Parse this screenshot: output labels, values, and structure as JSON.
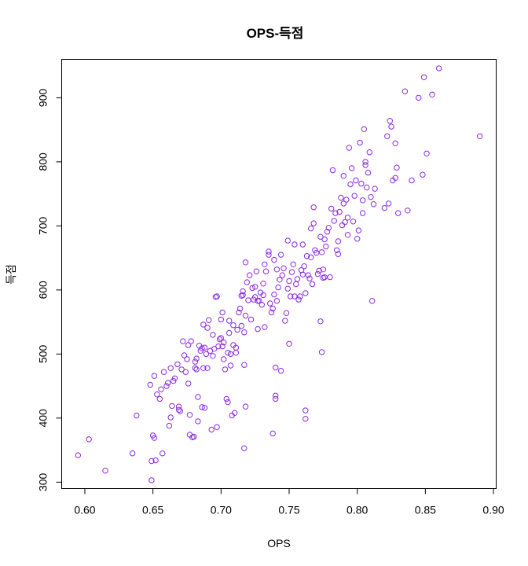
{
  "chart_data": {
    "type": "scatter",
    "title": "OPS-득점",
    "xlabel": "OPS",
    "ylabel": "득점",
    "xlim": [
      0.583,
      0.902
    ],
    "ylim": [
      290,
      960
    ],
    "x_ticks": [
      "0.60",
      "0.65",
      "0.70",
      "0.75",
      "0.80",
      "0.85",
      "0.90"
    ],
    "x_tick_values": [
      0.6,
      0.65,
      0.7,
      0.75,
      0.8,
      0.85,
      0.9
    ],
    "y_ticks": [
      "300",
      "400",
      "500",
      "600",
      "700",
      "800",
      "900"
    ],
    "y_tick_values": [
      300,
      400,
      500,
      600,
      700,
      800,
      900
    ],
    "grid": false,
    "marker": "open-circle",
    "point_color": "#8A2BE2",
    "points": [
      [
        0.595,
        342
      ],
      [
        0.603,
        367
      ],
      [
        0.615,
        318
      ],
      [
        0.635,
        345
      ],
      [
        0.638,
        404
      ],
      [
        0.648,
        452
      ],
      [
        0.649,
        333
      ],
      [
        0.649,
        303
      ],
      [
        0.65,
        373
      ],
      [
        0.651,
        369
      ],
      [
        0.651,
        466
      ],
      [
        0.652,
        334
      ],
      [
        0.653,
        437
      ],
      [
        0.655,
        430
      ],
      [
        0.656,
        445
      ],
      [
        0.657,
        345
      ],
      [
        0.658,
        472
      ],
      [
        0.66,
        450
      ],
      [
        0.661,
        455
      ],
      [
        0.662,
        388
      ],
      [
        0.663,
        478
      ],
      [
        0.663,
        401
      ],
      [
        0.664,
        419
      ],
      [
        0.665,
        458
      ],
      [
        0.666,
        462
      ],
      [
        0.668,
        484
      ],
      [
        0.669,
        413
      ],
      [
        0.669,
        418
      ],
      [
        0.67,
        411
      ],
      [
        0.671,
        476
      ],
      [
        0.672,
        520
      ],
      [
        0.673,
        498
      ],
      [
        0.674,
        472
      ],
      [
        0.675,
        492
      ],
      [
        0.676,
        454
      ],
      [
        0.676,
        514
      ],
      [
        0.677,
        405
      ],
      [
        0.677,
        374
      ],
      [
        0.678,
        520
      ],
      [
        0.679,
        370
      ],
      [
        0.68,
        371
      ],
      [
        0.681,
        478
      ],
      [
        0.681,
        488
      ],
      [
        0.682,
        493
      ],
      [
        0.682,
        476
      ],
      [
        0.683,
        433
      ],
      [
        0.683,
        395
      ],
      [
        0.684,
        513
      ],
      [
        0.685,
        505
      ],
      [
        0.686,
        509
      ],
      [
        0.686,
        417
      ],
      [
        0.687,
        546
      ],
      [
        0.687,
        478
      ],
      [
        0.688,
        416
      ],
      [
        0.688,
        510
      ],
      [
        0.689,
        500
      ],
      [
        0.69,
        541
      ],
      [
        0.69,
        478
      ],
      [
        0.691,
        553
      ],
      [
        0.692,
        505
      ],
      [
        0.693,
        382
      ],
      [
        0.694,
        497
      ],
      [
        0.694,
        530
      ],
      [
        0.695,
        508
      ],
      [
        0.696,
        589
      ],
      [
        0.697,
        590
      ],
      [
        0.697,
        386
      ],
      [
        0.698,
        512
      ],
      [
        0.699,
        523
      ],
      [
        0.7,
        554
      ],
      [
        0.7,
        525
      ],
      [
        0.701,
        565
      ],
      [
        0.701,
        512
      ],
      [
        0.702,
        518
      ],
      [
        0.702,
        492
      ],
      [
        0.703,
        476
      ],
      [
        0.704,
        430
      ],
      [
        0.705,
        502
      ],
      [
        0.705,
        425
      ],
      [
        0.706,
        533
      ],
      [
        0.706,
        552
      ],
      [
        0.707,
        500
      ],
      [
        0.707,
        482
      ],
      [
        0.708,
        404
      ],
      [
        0.709,
        514
      ],
      [
        0.709,
        545
      ],
      [
        0.71,
        408
      ],
      [
        0.711,
        502
      ],
      [
        0.711,
        510
      ],
      [
        0.712,
        538
      ],
      [
        0.713,
        565
      ],
      [
        0.714,
        571
      ],
      [
        0.715,
        544
      ],
      [
        0.715,
        591
      ],
      [
        0.716,
        592
      ],
      [
        0.716,
        598
      ],
      [
        0.717,
        534
      ],
      [
        0.717,
        483
      ],
      [
        0.717,
        353
      ],
      [
        0.718,
        560
      ],
      [
        0.718,
        418
      ],
      [
        0.718,
        643
      ],
      [
        0.719,
        612
      ],
      [
        0.72,
        584
      ],
      [
        0.721,
        623
      ],
      [
        0.722,
        554
      ],
      [
        0.723,
        603
      ],
      [
        0.724,
        585
      ],
      [
        0.725,
        605
      ],
      [
        0.725,
        589
      ],
      [
        0.726,
        629
      ],
      [
        0.727,
        583
      ],
      [
        0.727,
        539
      ],
      [
        0.728,
        583
      ],
      [
        0.729,
        596
      ],
      [
        0.73,
        577
      ],
      [
        0.731,
        592
      ],
      [
        0.731,
        610
      ],
      [
        0.732,
        640
      ],
      [
        0.732,
        542
      ],
      [
        0.733,
        629
      ],
      [
        0.735,
        660
      ],
      [
        0.735,
        655
      ],
      [
        0.736,
        579
      ],
      [
        0.737,
        565
      ],
      [
        0.738,
        376
      ],
      [
        0.738,
        571
      ],
      [
        0.739,
        593
      ],
      [
        0.739,
        647
      ],
      [
        0.74,
        435
      ],
      [
        0.74,
        430
      ],
      [
        0.74,
        479
      ],
      [
        0.741,
        583
      ],
      [
        0.741,
        632
      ],
      [
        0.742,
        604
      ],
      [
        0.743,
        616
      ],
      [
        0.744,
        474
      ],
      [
        0.744,
        655
      ],
      [
        0.745,
        623
      ],
      [
        0.746,
        634
      ],
      [
        0.747,
        552
      ],
      [
        0.748,
        564
      ],
      [
        0.749,
        677
      ],
      [
        0.749,
        602
      ],
      [
        0.75,
        614
      ],
      [
        0.75,
        516
      ],
      [
        0.751,
        590
      ],
      [
        0.752,
        628
      ],
      [
        0.753,
        640
      ],
      [
        0.754,
        671
      ],
      [
        0.754,
        590
      ],
      [
        0.755,
        609
      ],
      [
        0.756,
        617
      ],
      [
        0.757,
        585
      ],
      [
        0.758,
        590
      ],
      [
        0.759,
        631
      ],
      [
        0.76,
        624
      ],
      [
        0.76,
        671
      ],
      [
        0.761,
        637
      ],
      [
        0.762,
        595
      ],
      [
        0.762,
        412
      ],
      [
        0.762,
        399
      ],
      [
        0.763,
        653
      ],
      [
        0.764,
        623
      ],
      [
        0.765,
        618
      ],
      [
        0.766,
        651
      ],
      [
        0.766,
        696
      ],
      [
        0.767,
        609
      ],
      [
        0.768,
        729
      ],
      [
        0.768,
        704
      ],
      [
        0.769,
        662
      ],
      [
        0.77,
        658
      ],
      [
        0.771,
        625
      ],
      [
        0.772,
        630
      ],
      [
        0.773,
        683
      ],
      [
        0.773,
        551
      ],
      [
        0.774,
        659
      ],
      [
        0.774,
        503
      ],
      [
        0.775,
        619
      ],
      [
        0.775,
        632
      ],
      [
        0.776,
        620
      ],
      [
        0.776,
        679
      ],
      [
        0.777,
        668
      ],
      [
        0.778,
        691
      ],
      [
        0.779,
        697
      ],
      [
        0.78,
        620
      ],
      [
        0.781,
        727
      ],
      [
        0.782,
        787
      ],
      [
        0.783,
        708
      ],
      [
        0.784,
        720
      ],
      [
        0.785,
        662
      ],
      [
        0.786,
        676
      ],
      [
        0.786,
        656
      ],
      [
        0.787,
        722
      ],
      [
        0.788,
        744
      ],
      [
        0.789,
        701
      ],
      [
        0.79,
        778
      ],
      [
        0.79,
        735
      ],
      [
        0.791,
        706
      ],
      [
        0.792,
        741
      ],
      [
        0.793,
        713
      ],
      [
        0.793,
        686
      ],
      [
        0.794,
        822
      ],
      [
        0.795,
        765
      ],
      [
        0.796,
        790
      ],
      [
        0.797,
        707
      ],
      [
        0.798,
        747
      ],
      [
        0.799,
        771
      ],
      [
        0.8,
        680
      ],
      [
        0.801,
        693
      ],
      [
        0.802,
        830
      ],
      [
        0.803,
        766
      ],
      [
        0.804,
        740
      ],
      [
        0.804,
        720
      ],
      [
        0.805,
        851
      ],
      [
        0.806,
        800
      ],
      [
        0.806,
        795
      ],
      [
        0.807,
        760
      ],
      [
        0.808,
        783
      ],
      [
        0.809,
        815
      ],
      [
        0.81,
        745
      ],
      [
        0.811,
        583
      ],
      [
        0.812,
        734
      ],
      [
        0.813,
        758
      ],
      [
        0.82,
        728
      ],
      [
        0.822,
        840
      ],
      [
        0.823,
        735
      ],
      [
        0.824,
        864
      ],
      [
        0.825,
        855
      ],
      [
        0.826,
        771
      ],
      [
        0.828,
        829
      ],
      [
        0.828,
        775
      ],
      [
        0.829,
        791
      ],
      [
        0.83,
        720
      ],
      [
        0.835,
        910
      ],
      [
        0.837,
        724
      ],
      [
        0.84,
        771
      ],
      [
        0.845,
        900
      ],
      [
        0.848,
        780
      ],
      [
        0.849,
        932
      ],
      [
        0.851,
        813
      ],
      [
        0.855,
        905
      ],
      [
        0.86,
        946
      ],
      [
        0.89,
        840
      ]
    ]
  }
}
